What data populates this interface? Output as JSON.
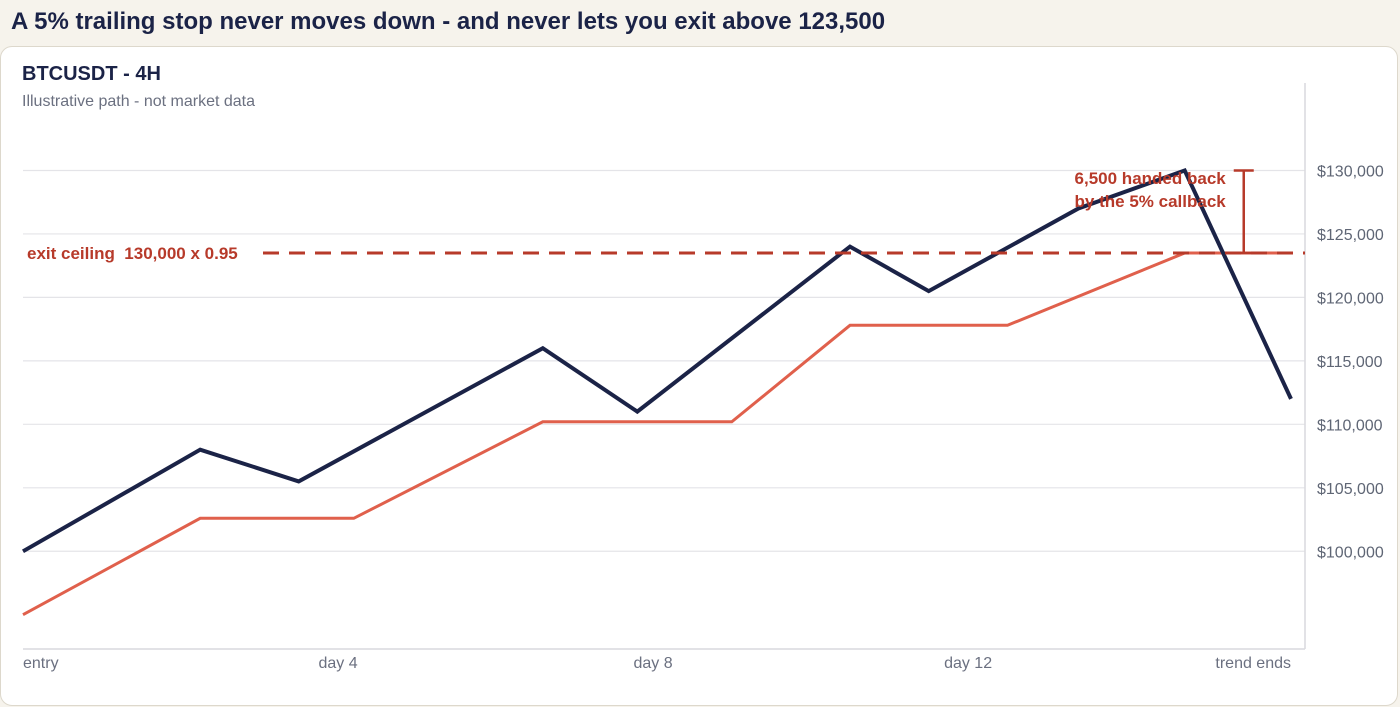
{
  "headline": "A 5% trailing stop never moves down - and never lets you exit above 123,500",
  "chart_data": {
    "type": "line",
    "symbol_title": "BTCUSDT - 4H",
    "subtitle": "Illustrative path - not market data",
    "x": [
      0,
      2.25,
      3.5,
      6.6,
      7.8,
      10.5,
      11.5,
      13.4,
      16.1
    ],
    "x_ticks": [
      {
        "x": 0,
        "label": "entry"
      },
      {
        "x": 4,
        "label": "day 4"
      },
      {
        "x": 8,
        "label": "day 8"
      },
      {
        "x": 12,
        "label": "day 12"
      },
      {
        "x": 16,
        "label": "trend ends"
      }
    ],
    "xlim": [
      0,
      16.1
    ],
    "ylim": [
      92300,
      135000
    ],
    "y_ticks": [
      100000,
      105000,
      110000,
      115000,
      120000,
      125000,
      130000
    ],
    "y_tick_labels": [
      "$100,000",
      "$105,000",
      "$110,000",
      "$115,000",
      "$120,000",
      "$125,000",
      "$130,000"
    ],
    "grid": true,
    "series": [
      {
        "key": "price",
        "color": "#1b2347",
        "x": [
          0,
          2.25,
          3.5,
          6.6,
          7.8,
          10.5,
          11.5,
          13.4,
          14.75,
          16.1
        ],
        "values": [
          100000,
          108000,
          105500,
          116000,
          111000,
          124000,
          120500,
          127000,
          130000,
          112000
        ]
      },
      {
        "key": "trailing_stop",
        "color": "#e0604c",
        "x": [
          0,
          2.25,
          4.2,
          6.6,
          9.0,
          10.5,
          12.5,
          14.75,
          16.1
        ],
        "values": [
          95000,
          102600,
          102600,
          110200,
          110200,
          117800,
          117800,
          123500,
          123500
        ]
      }
    ],
    "ceiling": {
      "value": 123500,
      "label": "exit ceiling  130,000 x 0.95",
      "color": "#b73a2a"
    },
    "callback": {
      "x": 15.5,
      "from": 123500,
      "to": 130000,
      "line1": "6,500 handed back",
      "line2": "by the 5% callback"
    }
  }
}
